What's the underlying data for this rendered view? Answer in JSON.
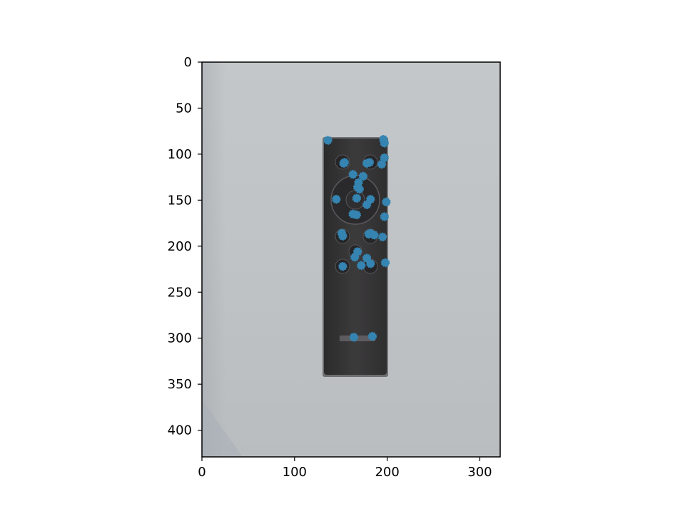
{
  "chart_data": {
    "type": "scatter",
    "background": "photo of a dark remote control on a light grey surface",
    "xlim": [
      0,
      322
    ],
    "ylim": [
      429,
      0
    ],
    "y_inverted": true,
    "x_ticks": [
      0,
      100,
      200,
      300
    ],
    "y_ticks": [
      0,
      50,
      100,
      150,
      200,
      250,
      300,
      350,
      400
    ],
    "x_tick_labels": [
      "0",
      "100",
      "200",
      "300"
    ],
    "y_tick_labels": [
      "0",
      "50",
      "100",
      "150",
      "200",
      "250",
      "300",
      "350",
      "400"
    ],
    "grid": false,
    "legend": "none",
    "marker_color": "#3584b1",
    "series": [
      {
        "x": [
          136,
          196,
          197,
          154,
          153,
          178,
          181,
          197,
          194,
          163,
          174,
          169,
          168,
          170,
          145,
          167,
          182,
          178,
          199,
          163,
          167,
          197,
          152,
          151,
          180,
          182,
          186,
          195,
          168,
          165,
          178,
          172,
          182,
          198,
          152,
          164,
          184
        ],
        "y": [
          85,
          84,
          88,
          109,
          110,
          110,
          109,
          104,
          111,
          122,
          124,
          131,
          136,
          138,
          149,
          148,
          149,
          155,
          152,
          165,
          166,
          168,
          189,
          186,
          187,
          186,
          188,
          190,
          206,
          212,
          213,
          221,
          219,
          218,
          222,
          299,
          298
        ]
      }
    ]
  }
}
